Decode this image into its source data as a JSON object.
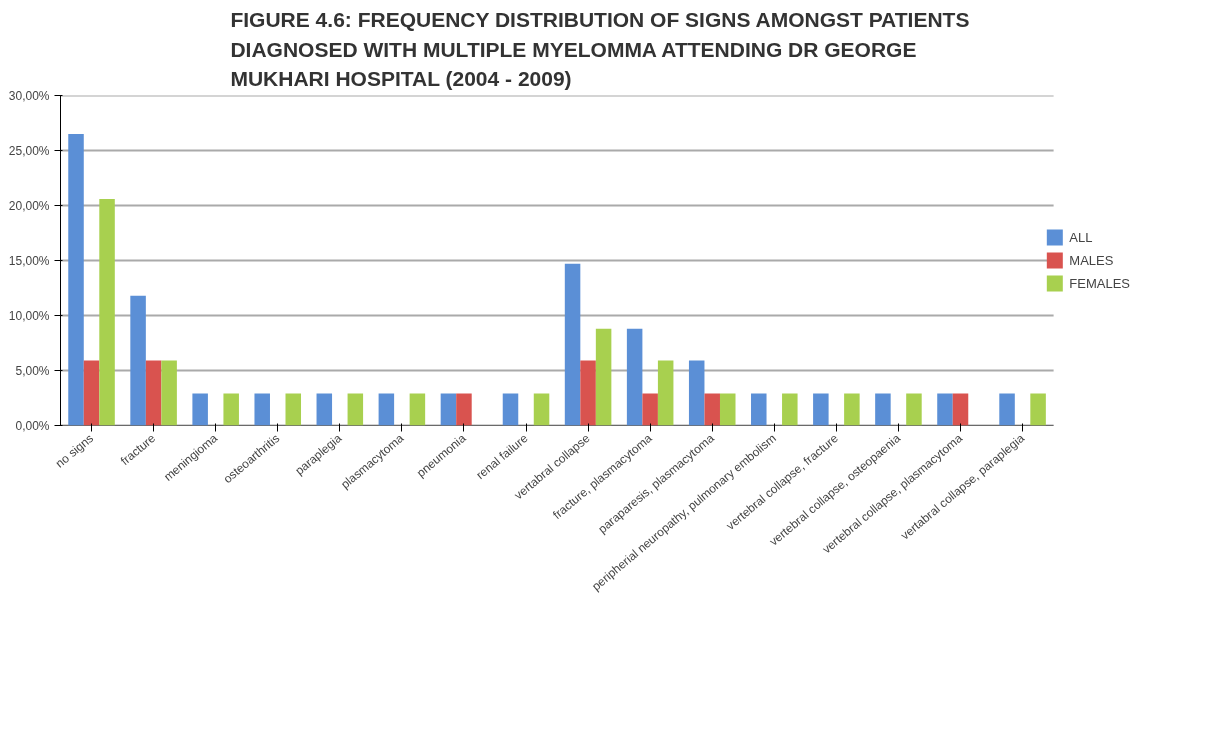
{
  "chart_data": {
    "type": "bar",
    "title": "FIGURE 4.6: FREQUENCY DISTRIBUTION OF SIGNS AMONGST PATIENTS\nDIAGNOSED WITH MULTIPLE MYELOMMA ATTENDING DR GEORGE\nMUKHARI HOSPITAL (2004 - 2009)",
    "categories": [
      "no signs",
      "fracture",
      "meningioma",
      "osteoarthritis",
      "paraplegia",
      "plasmacytoma",
      "pneumonia",
      "renal failure",
      "vertabral collapse",
      "fracture, plasmacytoma",
      "paraparesis, plasmacytoma",
      "peripherial neuropathy, pulmonary embolism",
      "vertebral collapse, fracture",
      "vertebral collapse, osteopaenia",
      "vertebral collapse, plasmacytoma",
      "vertabral collapse, paraplegia"
    ],
    "series": [
      {
        "name": "ALL",
        "color": "#5b8fd6",
        "values": [
          26.5,
          11.8,
          2.9,
          2.9,
          2.9,
          2.9,
          2.9,
          2.9,
          14.7,
          8.8,
          5.9,
          2.9,
          2.9,
          2.9,
          2.9,
          2.9
        ]
      },
      {
        "name": "MALES",
        "color": "#d9534f",
        "values": [
          5.9,
          5.9,
          0,
          0,
          0,
          0,
          2.9,
          0,
          5.9,
          2.9,
          2.9,
          0,
          0,
          0,
          2.9,
          0
        ]
      },
      {
        "name": "FEMALES",
        "color": "#a8d04f",
        "values": [
          20.6,
          5.9,
          2.9,
          2.9,
          2.9,
          2.9,
          0,
          2.9,
          8.8,
          5.9,
          2.9,
          2.9,
          2.9,
          2.9,
          0,
          2.9
        ]
      }
    ],
    "ylim": [
      0,
      30
    ],
    "yticks": [
      {
        "value": 0,
        "label": "0,00%"
      },
      {
        "value": 5,
        "label": "5,00%"
      },
      {
        "value": 10,
        "label": "10,00%"
      },
      {
        "value": 15,
        "label": "15,00%"
      },
      {
        "value": 20,
        "label": "20,00%"
      },
      {
        "value": 25,
        "label": "25,00%"
      },
      {
        "value": 30,
        "label": "30,00%"
      }
    ],
    "grid": "y",
    "legend": "right"
  }
}
